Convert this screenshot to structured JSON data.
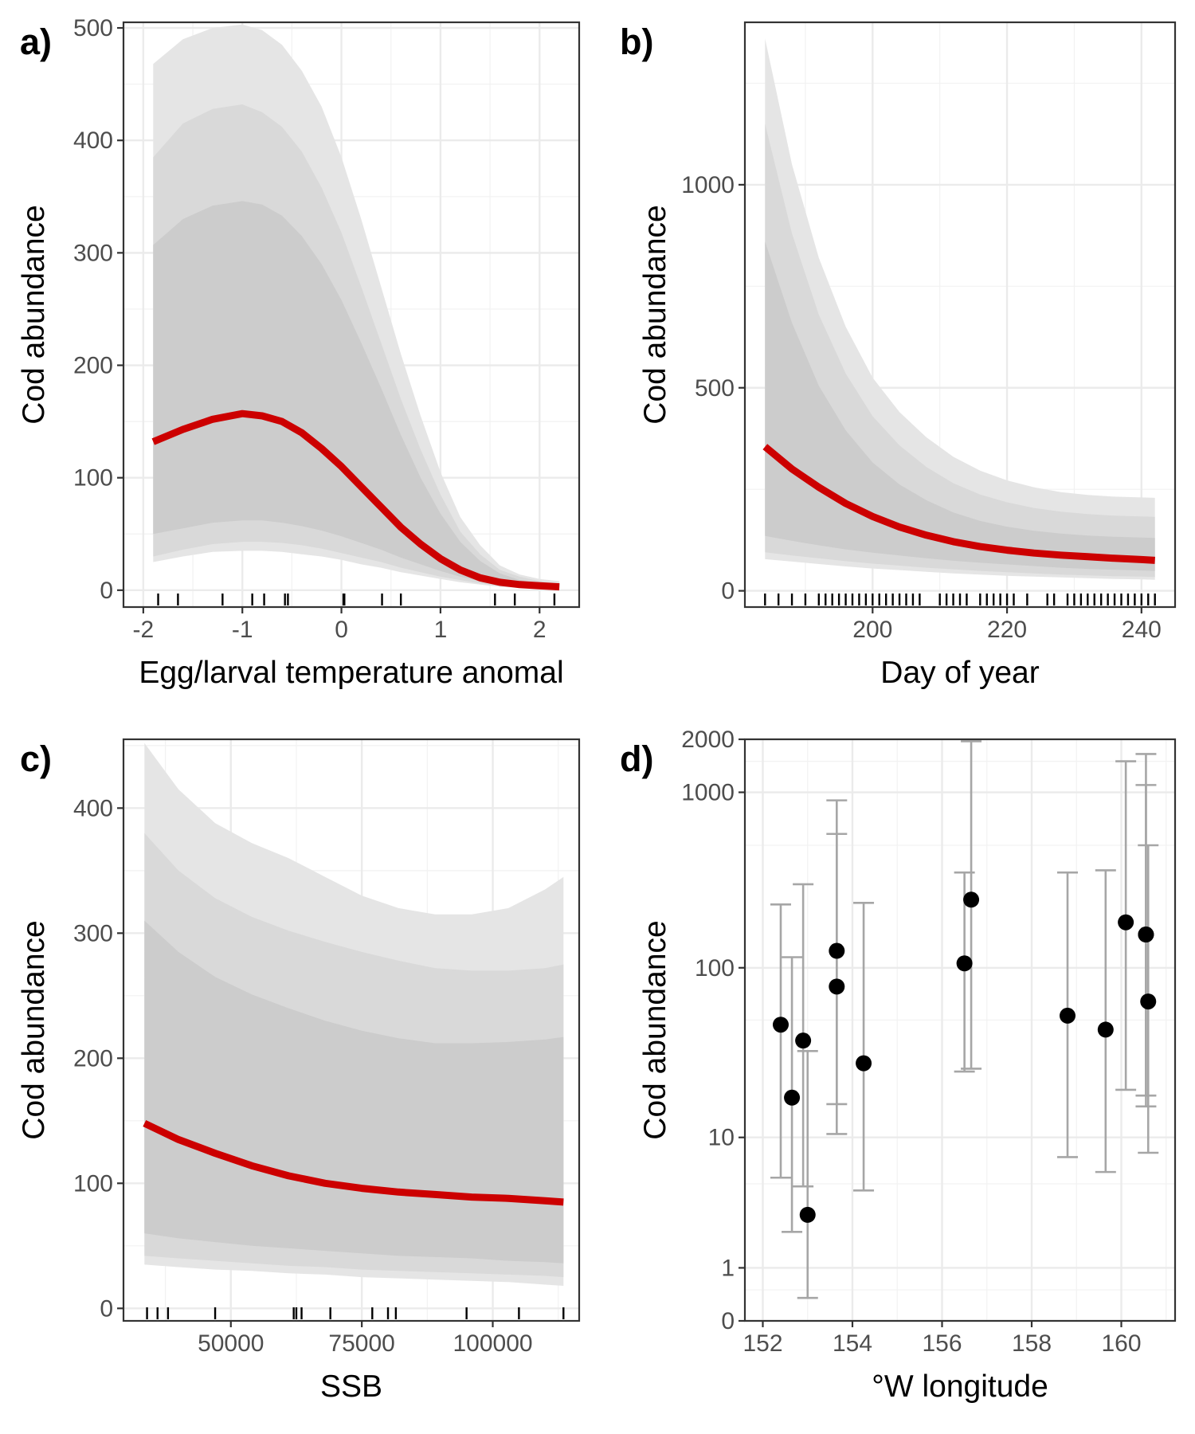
{
  "colors": {
    "fit_line": "#cc0000",
    "band_outer": "#e5e5e5",
    "band_middle": "#d9d9d9",
    "band_inner": "#cccccc",
    "grid_major": "#ebebeb",
    "grid_minor": "#f2f2f2",
    "panel_border": "#333333",
    "point": "#000000",
    "error_bar": "#a6a6a6"
  },
  "chart_data": [
    {
      "id": "a",
      "panel_label": "a)",
      "type": "line",
      "xlabel": "Egg/larval temperature anomal",
      "ylabel": "Cod abundance",
      "xlim": [
        -2.2,
        2.4
      ],
      "ylim": [
        -15,
        505
      ],
      "x_ticks": [
        -2,
        -1,
        0,
        1,
        2
      ],
      "x_tick_labels": [
        "-2",
        "-1",
        "0",
        "1",
        "2"
      ],
      "y_ticks": [
        0,
        100,
        200,
        300,
        400,
        500
      ],
      "y_tick_labels": [
        "0",
        "100",
        "200",
        "300",
        "400",
        "500"
      ],
      "grid": true,
      "x": [
        -1.9,
        -1.6,
        -1.3,
        -1.0,
        -0.8,
        -0.6,
        -0.4,
        -0.2,
        0.0,
        0.2,
        0.4,
        0.6,
        0.8,
        1.0,
        1.2,
        1.4,
        1.6,
        1.8,
        2.0,
        2.2
      ],
      "fit": [
        132,
        143,
        152,
        157,
        155,
        150,
        140,
        126,
        110,
        92,
        74,
        56,
        41,
        28,
        18,
        11,
        7,
        5,
        4,
        3
      ],
      "bands": [
        {
          "level": "outer",
          "lower": [
            25,
            30,
            34,
            35,
            35,
            34,
            32,
            30,
            27,
            23,
            20,
            16,
            13,
            10,
            7,
            5,
            3,
            2,
            1,
            1
          ],
          "upper": [
            468,
            490,
            500,
            503,
            498,
            485,
            462,
            430,
            385,
            330,
            270,
            210,
            155,
            105,
            65,
            40,
            22,
            14,
            10,
            8
          ]
        },
        {
          "level": "middle",
          "lower": [
            30,
            36,
            41,
            43,
            43,
            42,
            40,
            37,
            33,
            29,
            25,
            20,
            16,
            12,
            9,
            6,
            4,
            3,
            2,
            1
          ],
          "upper": [
            385,
            415,
            428,
            432,
            425,
            412,
            390,
            358,
            318,
            270,
            220,
            170,
            125,
            85,
            52,
            32,
            18,
            12,
            8,
            6
          ]
        },
        {
          "level": "inner",
          "lower": [
            50,
            55,
            60,
            62,
            62,
            60,
            57,
            53,
            48,
            42,
            36,
            29,
            23,
            17,
            12,
            8,
            5,
            4,
            3,
            2
          ],
          "upper": [
            307,
            330,
            342,
            346,
            343,
            333,
            315,
            290,
            258,
            220,
            180,
            138,
            100,
            68,
            43,
            26,
            15,
            9,
            6,
            5
          ]
        }
      ],
      "rug": [
        -1.85,
        -1.65,
        -1.2,
        -0.9,
        -0.78,
        -0.57,
        -0.54,
        0.02,
        0.03,
        0.41,
        0.6,
        1.55,
        1.75,
        2.15
      ]
    },
    {
      "id": "b",
      "panel_label": "b)",
      "type": "line",
      "xlabel": "Day of year",
      "ylabel": "Cod abundance",
      "xlim": [
        181,
        245
      ],
      "ylim": [
        -40,
        1400
      ],
      "x_ticks": [
        200,
        220,
        240
      ],
      "x_tick_labels": [
        "200",
        "220",
        "240"
      ],
      "y_ticks": [
        0,
        500,
        1000
      ],
      "y_tick_labels": [
        "0",
        "500",
        "1000"
      ],
      "grid": true,
      "x": [
        184,
        188,
        192,
        196,
        200,
        204,
        208,
        212,
        216,
        220,
        224,
        228,
        232,
        236,
        240,
        242
      ],
      "fit": [
        355,
        300,
        255,
        215,
        183,
        157,
        137,
        121,
        109,
        100,
        93,
        88,
        84,
        80,
        77,
        75
      ],
      "bands": [
        {
          "level": "outer",
          "lower": [
            78,
            72,
            66,
            60,
            55,
            51,
            47,
            43,
            40,
            37,
            35,
            33,
            31,
            29,
            28,
            27
          ],
          "upper": [
            1360,
            1050,
            820,
            650,
            525,
            440,
            378,
            330,
            296,
            272,
            255,
            243,
            236,
            232,
            230,
            229
          ]
        },
        {
          "level": "middle",
          "lower": [
            95,
            87,
            80,
            73,
            67,
            62,
            57,
            53,
            49,
            46,
            43,
            40,
            38,
            36,
            35,
            34
          ],
          "upper": [
            1150,
            880,
            680,
            535,
            430,
            358,
            305,
            265,
            237,
            218,
            204,
            195,
            189,
            185,
            183,
            182
          ]
        },
        {
          "level": "inner",
          "lower": [
            135,
            123,
            112,
            102,
            94,
            87,
            80,
            74,
            69,
            65,
            61,
            57,
            54,
            52,
            50,
            49
          ],
          "upper": [
            860,
            660,
            505,
            395,
            316,
            262,
            223,
            193,
            172,
            158,
            148,
            141,
            136,
            133,
            131,
            130
          ]
        }
      ],
      "rug": [
        184,
        186,
        188,
        190,
        192,
        193,
        194,
        195,
        196,
        197,
        198,
        199,
        200,
        201,
        202,
        203,
        204,
        205,
        206,
        207,
        210,
        211,
        212,
        213,
        214,
        216,
        217,
        218,
        219,
        220,
        221,
        223,
        226,
        227,
        229,
        230,
        231,
        232,
        233,
        234,
        235,
        236,
        237,
        238,
        239,
        240,
        241,
        242
      ]
    },
    {
      "id": "c",
      "panel_label": "c)",
      "type": "line",
      "xlabel": "SSB",
      "ylabel": "Cod abundance",
      "xlim": [
        29500,
        116500
      ],
      "ylim": [
        -10,
        455
      ],
      "x_ticks": [
        50000,
        75000,
        100000
      ],
      "x_tick_labels": [
        "50000",
        "75000",
        "100000"
      ],
      "y_ticks": [
        0,
        100,
        200,
        300,
        400
      ],
      "y_tick_labels": [
        "0",
        "100",
        "200",
        "300",
        "400"
      ],
      "grid": true,
      "x": [
        33500,
        40000,
        47000,
        54000,
        61000,
        68000,
        75000,
        82000,
        89000,
        96000,
        103000,
        110000,
        113500
      ],
      "fit": [
        148,
        135,
        124,
        114,
        106,
        100,
        96,
        93,
        91,
        89,
        88,
        86,
        85
      ],
      "bands": [
        {
          "level": "outer",
          "lower": [
            35,
            33,
            31,
            30,
            28,
            27,
            25,
            24,
            23,
            22,
            21,
            19,
            18
          ],
          "upper": [
            452,
            415,
            388,
            372,
            360,
            345,
            330,
            320,
            315,
            315,
            320,
            335,
            345
          ]
        },
        {
          "level": "middle",
          "lower": [
            42,
            40,
            38,
            36,
            34,
            33,
            31,
            30,
            29,
            28,
            27,
            26,
            25
          ],
          "upper": [
            380,
            350,
            328,
            313,
            302,
            293,
            285,
            278,
            272,
            270,
            270,
            272,
            275
          ]
        },
        {
          "level": "inner",
          "lower": [
            60,
            56,
            53,
            50,
            48,
            46,
            44,
            42,
            41,
            40,
            38,
            37,
            36
          ],
          "upper": [
            310,
            285,
            265,
            251,
            240,
            230,
            222,
            216,
            212,
            212,
            213,
            215,
            217
          ]
        }
      ],
      "rug": [
        34000,
        36000,
        38000,
        47000,
        62000,
        62500,
        63500,
        69000,
        77000,
        80000,
        81500,
        95000,
        105000,
        113500
      ]
    },
    {
      "id": "d",
      "panel_label": "d)",
      "type": "scatter",
      "xlabel": "°W longitude",
      "ylabel": "Cod abundance",
      "scale_y": "log1p",
      "xlim": [
        151.6,
        161.2
      ],
      "ylim": [
        0,
        2000
      ],
      "x_ticks": [
        152,
        154,
        156,
        158,
        160
      ],
      "x_tick_labels": [
        "152",
        "154",
        "156",
        "158",
        "160"
      ],
      "y_ticks": [
        0,
        1,
        10,
        100,
        1000,
        2000
      ],
      "y_tick_labels": [
        "0",
        "1",
        "10",
        "100",
        "1000",
        "2000"
      ],
      "grid": true,
      "points": [
        {
          "x": 152.4,
          "y": 47,
          "lower": 5.5,
          "upper": 230
        },
        {
          "x": 152.65,
          "y": 17.5,
          "lower": 2.2,
          "upper": 115
        },
        {
          "x": 152.9,
          "y": 38,
          "lower": 4.8,
          "upper": 300
        },
        {
          "x": 153.0,
          "y": 3.0,
          "lower": 0.35,
          "upper": 33
        },
        {
          "x": 153.65,
          "y": 125,
          "lower": 16,
          "upper": 900
        },
        {
          "x": 153.65,
          "y": 78,
          "lower": 10.5,
          "upper": 580
        },
        {
          "x": 154.25,
          "y": 28,
          "lower": 4.5,
          "upper": 235
        },
        {
          "x": 156.5,
          "y": 106,
          "lower": 25,
          "upper": 350
        },
        {
          "x": 156.65,
          "y": 245,
          "lower": 26,
          "upper": 1950
        },
        {
          "x": 158.8,
          "y": 53,
          "lower": 7.5,
          "upper": 350
        },
        {
          "x": 159.65,
          "y": 44,
          "lower": 6,
          "upper": 360
        },
        {
          "x": 160.1,
          "y": 182,
          "lower": 19.5,
          "upper": 1500
        },
        {
          "x": 160.55,
          "y": 155,
          "lower": 15.5,
          "upper": 1650
        },
        {
          "x": 160.55,
          "y": 155,
          "lower": 18,
          "upper": 1100
        },
        {
          "x": 160.6,
          "y": 64,
          "lower": 8,
          "upper": 500
        }
      ]
    }
  ]
}
